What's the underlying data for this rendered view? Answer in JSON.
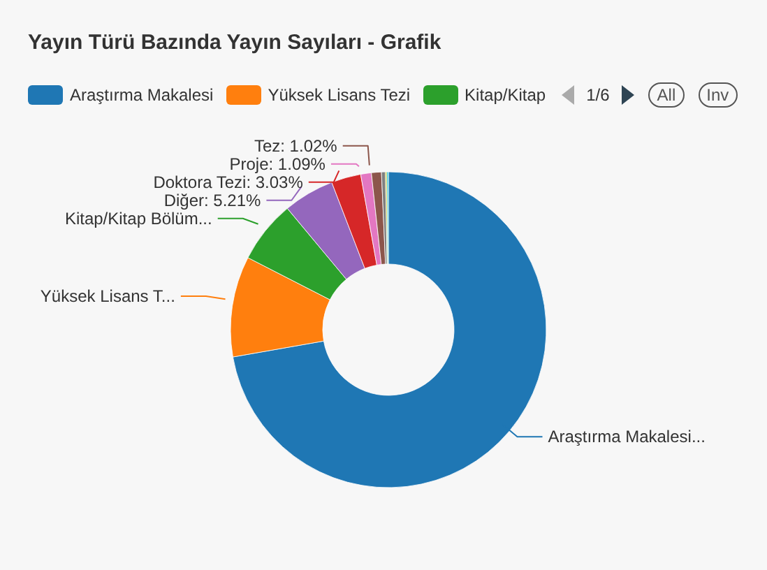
{
  "chart_data": {
    "type": "donut",
    "title": "Yayın Türü Bazında Yayın Sayıları - Grafik",
    "categories": [
      "Araştırma Makalesi",
      "Yüksek Lisans Tezi",
      "Kitap/Kitap",
      "Diğer",
      "Doktora Tezi",
      "Proje",
      "Tez",
      null,
      null,
      null
    ],
    "values": [
      72.2,
      10.3,
      6.4,
      5.21,
      3.03,
      1.09,
      1.02,
      0.4,
      0.15,
      0.15
    ],
    "colors": [
      "#1f77b4",
      "#ff7f0e",
      "#2ca02c",
      "#9467bd",
      "#d62728",
      "#e377c2",
      "#8c564b",
      "#7f7f7f",
      "#bcbd22",
      "#17becf"
    ],
    "value_labels": [
      null,
      null,
      null,
      "5.21%",
      "3.03%",
      "1.09%",
      "1.02%",
      null,
      null,
      null
    ],
    "legend": "top left",
    "annotations": [
      "1/6",
      "All",
      "Inv",
      {
        "text": "Araştırma Makalesi...",
        "x": "Araştırma Makalesi"
      },
      {
        "text": "Yüksek Lisans T...",
        "x": "Yüksek Lisans Tezi"
      },
      {
        "text": "Kitap/Kitap Bölüm...",
        "x": "Kitap/Kitap"
      }
    ]
  }
}
